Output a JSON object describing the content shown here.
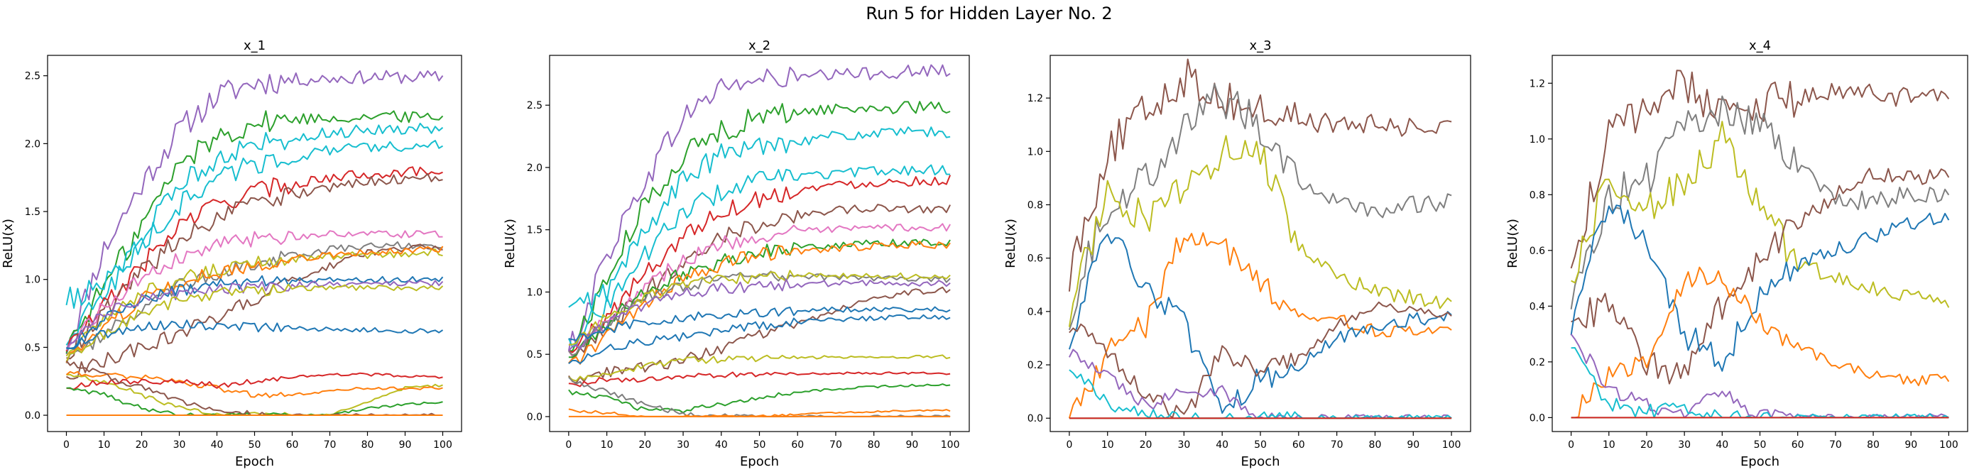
{
  "figure": {
    "suptitle": "Run 5 for Hidden Layer No. 2"
  },
  "chart_data": [
    {
      "type": "line",
      "title": "x_1",
      "xlabel": "Epoch",
      "ylabel": "ReLU(x)",
      "xlim": [
        -5,
        105
      ],
      "ylim": [
        -0.12,
        2.65
      ],
      "xticks": [
        0,
        10,
        20,
        30,
        40,
        50,
        60,
        70,
        80,
        90,
        100
      ],
      "yticks": [
        0.0,
        0.5,
        1.0,
        1.5,
        2.0,
        2.5
      ],
      "ytick_labels": [
        "0.0",
        "0.5",
        "1.0",
        "1.5",
        "2.0",
        "2.5"
      ],
      "grid": false,
      "series": [
        {
          "color": "#9467bd",
          "values": [
            0.5,
            1.22,
            1.7,
            2.1,
            2.35,
            2.45,
            2.47,
            2.48,
            2.49,
            2.49,
            2.49
          ]
        },
        {
          "color": "#2ca02c",
          "values": [
            0.5,
            0.95,
            1.4,
            1.85,
            2.05,
            2.15,
            2.18,
            2.19,
            2.2,
            2.2,
            2.2
          ]
        },
        {
          "color": "#17becf",
          "values": [
            0.85,
            0.95,
            1.3,
            1.7,
            1.9,
            2.0,
            2.05,
            2.08,
            2.1,
            2.11,
            2.12
          ]
        },
        {
          "color": "#17becf",
          "values": [
            0.55,
            0.9,
            1.25,
            1.55,
            1.75,
            1.85,
            1.9,
            1.95,
            1.97,
            1.98,
            1.99
          ]
        },
        {
          "color": "#d62728",
          "values": [
            0.5,
            0.8,
            1.1,
            1.4,
            1.55,
            1.65,
            1.7,
            1.75,
            1.78,
            1.79,
            1.8
          ]
        },
        {
          "color": "#8c564b",
          "values": [
            0.45,
            0.75,
            1.05,
            1.3,
            1.45,
            1.55,
            1.62,
            1.68,
            1.72,
            1.74,
            1.75
          ]
        },
        {
          "color": "#e377c2",
          "values": [
            0.5,
            0.8,
            1.0,
            1.15,
            1.25,
            1.3,
            1.32,
            1.33,
            1.33,
            1.33,
            1.33
          ]
        },
        {
          "color": "#7f7f7f",
          "values": [
            0.4,
            0.6,
            0.8,
            0.95,
            1.05,
            1.12,
            1.18,
            1.22,
            1.25,
            1.25,
            1.25
          ]
        },
        {
          "color": "#8c564b",
          "values": [
            0.3,
            0.4,
            0.5,
            0.6,
            0.72,
            0.85,
            1.0,
            1.1,
            1.2,
            1.23,
            1.24
          ]
        },
        {
          "color": "#bcbd22",
          "values": [
            0.45,
            0.7,
            0.9,
            1.0,
            1.07,
            1.12,
            1.15,
            1.17,
            1.18,
            1.19,
            1.2
          ]
        },
        {
          "color": "#ff7f0e",
          "values": [
            0.4,
            0.65,
            0.85,
            0.98,
            1.05,
            1.1,
            1.15,
            1.18,
            1.2,
            1.21,
            1.22
          ]
        },
        {
          "color": "#1f77b4",
          "values": [
            0.5,
            0.7,
            0.85,
            0.92,
            0.96,
            0.98,
            0.99,
            1.0,
            1.0,
            1.0,
            1.0
          ]
        },
        {
          "color": "#9467bd",
          "values": [
            0.5,
            0.75,
            0.85,
            0.9,
            0.93,
            0.95,
            0.96,
            0.97,
            0.97,
            0.97,
            0.97
          ]
        },
        {
          "color": "#bcbd22",
          "values": [
            0.4,
            0.6,
            0.75,
            0.85,
            0.9,
            0.92,
            0.93,
            0.94,
            0.94,
            0.94,
            0.94
          ]
        },
        {
          "color": "#1f77b4",
          "values": [
            0.5,
            0.6,
            0.65,
            0.67,
            0.66,
            0.65,
            0.64,
            0.63,
            0.63,
            0.62,
            0.62
          ]
        },
        {
          "color": "#bcbd22",
          "values": [
            0.3,
            0.25,
            0.15,
            0.05,
            0.0,
            0.0,
            0.0,
            0.0,
            0.1,
            0.2,
            0.22
          ]
        },
        {
          "color": "#ff7f0e",
          "values": [
            0.3,
            0.3,
            0.28,
            0.25,
            0.2,
            0.15,
            0.15,
            0.18,
            0.2,
            0.2,
            0.2
          ]
        },
        {
          "color": "#d62728",
          "values": [
            0.2,
            0.25,
            0.25,
            0.25,
            0.22,
            0.25,
            0.28,
            0.3,
            0.3,
            0.29,
            0.28
          ]
        },
        {
          "color": "#2ca02c",
          "values": [
            0.2,
            0.15,
            0.05,
            0.0,
            0.0,
            0.0,
            0.0,
            0.0,
            0.05,
            0.08,
            0.1
          ]
        },
        {
          "color": "#8c564b",
          "values": [
            0.4,
            0.3,
            0.2,
            0.1,
            0.05,
            0.0,
            0.0,
            0.0,
            0.0,
            0.0,
            0.0
          ]
        },
        {
          "color": "#ff7f0e",
          "values": [
            0,
            0,
            0,
            0,
            0,
            0,
            0,
            0,
            0,
            0,
            0
          ]
        }
      ]
    },
    {
      "type": "line",
      "title": "x_2",
      "xlabel": "Epoch",
      "ylabel": "ReLU(x)",
      "xlim": [
        -5,
        105
      ],
      "ylim": [
        -0.12,
        2.9
      ],
      "xticks": [
        0,
        10,
        20,
        30,
        40,
        50,
        60,
        70,
        80,
        90,
        100
      ],
      "yticks": [
        0.0,
        0.5,
        1.0,
        1.5,
        2.0,
        2.5
      ],
      "ytick_labels": [
        "0.0",
        "0.5",
        "1.0",
        "1.5",
        "2.0",
        "2.5"
      ],
      "grid": false,
      "series": [
        {
          "color": "#9467bd",
          "values": [
            0.5,
            1.3,
            1.9,
            2.4,
            2.65,
            2.7,
            2.72,
            2.74,
            2.76,
            2.77,
            2.78
          ]
        },
        {
          "color": "#2ca02c",
          "values": [
            0.5,
            1.1,
            1.7,
            2.1,
            2.3,
            2.4,
            2.45,
            2.47,
            2.48,
            2.48,
            2.48
          ]
        },
        {
          "color": "#17becf",
          "values": [
            0.85,
            1.0,
            1.5,
            1.9,
            2.1,
            2.18,
            2.22,
            2.25,
            2.27,
            2.28,
            2.28
          ]
        },
        {
          "color": "#17becf",
          "values": [
            0.6,
            0.9,
            1.3,
            1.65,
            1.8,
            1.9,
            1.93,
            1.95,
            1.97,
            1.98,
            1.98
          ]
        },
        {
          "color": "#d62728",
          "values": [
            0.5,
            0.8,
            1.15,
            1.45,
            1.65,
            1.75,
            1.82,
            1.86,
            1.88,
            1.89,
            1.9
          ]
        },
        {
          "color": "#8c564b",
          "values": [
            0.4,
            0.7,
            1.0,
            1.25,
            1.45,
            1.55,
            1.62,
            1.66,
            1.67,
            1.67,
            1.67
          ]
        },
        {
          "color": "#e377c2",
          "values": [
            0.5,
            0.8,
            1.05,
            1.25,
            1.38,
            1.45,
            1.48,
            1.5,
            1.51,
            1.52,
            1.52
          ]
        },
        {
          "color": "#2ca02c",
          "values": [
            0.45,
            0.75,
            1.0,
            1.15,
            1.25,
            1.32,
            1.36,
            1.38,
            1.39,
            1.4,
            1.4
          ]
        },
        {
          "color": "#ff7f0e",
          "values": [
            0.4,
            0.65,
            0.9,
            1.1,
            1.22,
            1.3,
            1.33,
            1.35,
            1.37,
            1.38,
            1.38
          ]
        },
        {
          "color": "#7f7f7f",
          "values": [
            0.5,
            0.75,
            0.95,
            1.05,
            1.1,
            1.12,
            1.12,
            1.12,
            1.11,
            1.11,
            1.1
          ]
        },
        {
          "color": "#bcbd22",
          "values": [
            0.55,
            0.8,
            0.95,
            1.05,
            1.1,
            1.12,
            1.13,
            1.13,
            1.13,
            1.13,
            1.13
          ]
        },
        {
          "color": "#9467bd",
          "values": [
            0.5,
            0.75,
            0.9,
            0.98,
            1.03,
            1.05,
            1.06,
            1.07,
            1.07,
            1.07,
            1.07
          ]
        },
        {
          "color": "#8c564b",
          "values": [
            0.3,
            0.35,
            0.4,
            0.45,
            0.55,
            0.65,
            0.75,
            0.85,
            0.95,
            1.0,
            1.02
          ]
        },
        {
          "color": "#1f77b4",
          "values": [
            0.6,
            0.7,
            0.75,
            0.8,
            0.82,
            0.84,
            0.85,
            0.86,
            0.86,
            0.86,
            0.86
          ]
        },
        {
          "color": "#1f77b4",
          "values": [
            0.4,
            0.55,
            0.6,
            0.65,
            0.7,
            0.73,
            0.76,
            0.78,
            0.79,
            0.8,
            0.8
          ]
        },
        {
          "color": "#bcbd22",
          "values": [
            0.3,
            0.35,
            0.4,
            0.45,
            0.46,
            0.47,
            0.47,
            0.48,
            0.48,
            0.48,
            0.48
          ]
        },
        {
          "color": "#d62728",
          "values": [
            0.25,
            0.3,
            0.3,
            0.32,
            0.33,
            0.34,
            0.34,
            0.35,
            0.35,
            0.35,
            0.35
          ]
        },
        {
          "color": "#2ca02c",
          "values": [
            0.2,
            0.15,
            0.05,
            0.05,
            0.1,
            0.15,
            0.2,
            0.22,
            0.24,
            0.25,
            0.26
          ]
        },
        {
          "color": "#7f7f7f",
          "values": [
            0.3,
            0.2,
            0.1,
            0.02,
            0.0,
            0.0,
            0.0,
            0.0,
            0.0,
            0.0,
            0.0
          ]
        },
        {
          "color": "#ff7f0e",
          "values": [
            0.05,
            0.03,
            0.0,
            0.0,
            0.0,
            0.0,
            0.02,
            0.03,
            0.04,
            0.05,
            0.05
          ]
        },
        {
          "color": "#ff7f0e",
          "values": [
            0,
            0,
            0,
            0,
            0,
            0,
            0,
            0,
            0,
            0,
            0
          ]
        }
      ]
    },
    {
      "type": "line",
      "title": "x_3",
      "xlabel": "Epoch",
      "ylabel": "ReLU(x)",
      "xlim": [
        -5,
        105
      ],
      "ylim": [
        -0.05,
        1.36
      ],
      "xticks": [
        0,
        10,
        20,
        30,
        40,
        50,
        60,
        70,
        80,
        90,
        100
      ],
      "yticks": [
        0.0,
        0.2,
        0.4,
        0.6,
        0.8,
        1.0,
        1.2
      ],
      "ytick_labels": [
        "0.0",
        "0.2",
        "0.4",
        "0.6",
        "0.8",
        "1.0",
        "1.2"
      ],
      "grid": false,
      "series": [
        {
          "color": "#8c564b",
          "values": [
            0.55,
            1.0,
            1.15,
            1.28,
            1.2,
            1.15,
            1.12,
            1.1,
            1.1,
            1.09,
            1.08
          ]
        },
        {
          "color": "#7f7f7f",
          "values": [
            0.4,
            0.8,
            0.9,
            1.1,
            1.2,
            1.1,
            0.9,
            0.8,
            0.78,
            0.8,
            0.81
          ]
        },
        {
          "color": "#bcbd22",
          "values": [
            0.4,
            0.85,
            0.75,
            0.85,
            1.0,
            1.0,
            0.65,
            0.52,
            0.48,
            0.45,
            0.42
          ]
        },
        {
          "color": "#ff7f0e",
          "values": [
            0.0,
            0.25,
            0.35,
            0.7,
            0.65,
            0.5,
            0.4,
            0.37,
            0.33,
            0.32,
            0.32
          ]
        },
        {
          "color": "#1f77b4",
          "values": [
            0.3,
            0.7,
            0.5,
            0.35,
            0.0,
            0.15,
            0.2,
            0.3,
            0.35,
            0.37,
            0.38
          ]
        },
        {
          "color": "#8c564b",
          "values": [
            0.35,
            0.25,
            0.1,
            0.0,
            0.25,
            0.18,
            0.22,
            0.35,
            0.42,
            0.4,
            0.38
          ]
        },
        {
          "color": "#9467bd",
          "values": [
            0.25,
            0.15,
            0.05,
            0.1,
            0.1,
            0.0,
            0.0,
            0.0,
            0.0,
            0.0,
            0.0
          ]
        },
        {
          "color": "#17becf",
          "values": [
            0.2,
            0.05,
            0.02,
            0.0,
            0.0,
            0.0,
            0.0,
            0.0,
            0.0,
            0.0,
            0.0
          ]
        },
        {
          "color": "#2ca02c",
          "values": [
            0,
            0,
            0,
            0,
            0,
            0,
            0,
            0,
            0,
            0,
            0
          ]
        },
        {
          "color": "#d62728",
          "values": [
            0,
            0,
            0,
            0,
            0,
            0,
            0,
            0,
            0,
            0,
            0
          ]
        }
      ]
    },
    {
      "type": "line",
      "title": "x_4",
      "xlabel": "Epoch",
      "ylabel": "ReLU(x)",
      "xlim": [
        -5,
        105
      ],
      "ylim": [
        -0.05,
        1.3
      ],
      "xticks": [
        0,
        10,
        20,
        30,
        40,
        50,
        60,
        70,
        80,
        90,
        100
      ],
      "yticks": [
        0.0,
        0.2,
        0.4,
        0.6,
        0.8,
        1.0,
        1.2
      ],
      "ytick_labels": [
        "0.0",
        "0.2",
        "0.4",
        "0.6",
        "0.8",
        "1.0",
        "1.2"
      ],
      "grid": false,
      "series": [
        {
          "color": "#8c564b",
          "values": [
            0.55,
            1.0,
            1.12,
            1.2,
            1.1,
            1.12,
            1.15,
            1.17,
            1.16,
            1.15,
            1.14
          ]
        },
        {
          "color": "#7f7f7f",
          "values": [
            0.4,
            0.8,
            0.85,
            1.05,
            1.1,
            1.05,
            0.9,
            0.78,
            0.78,
            0.8,
            0.8
          ]
        },
        {
          "color": "#bcbd22",
          "values": [
            0.5,
            0.85,
            0.75,
            0.85,
            1.0,
            0.75,
            0.55,
            0.5,
            0.46,
            0.43,
            0.4
          ]
        },
        {
          "color": "#8c564b",
          "values": [
            0.35,
            0.4,
            0.2,
            0.15,
            0.4,
            0.55,
            0.7,
            0.8,
            0.88,
            0.86,
            0.87
          ]
        },
        {
          "color": "#1f77b4",
          "values": [
            0.3,
            0.8,
            0.6,
            0.3,
            0.2,
            0.45,
            0.55,
            0.6,
            0.65,
            0.7,
            0.72
          ]
        },
        {
          "color": "#ff7f0e",
          "values": [
            0.0,
            0.15,
            0.2,
            0.5,
            0.5,
            0.35,
            0.25,
            0.2,
            0.15,
            0.13,
            0.14
          ]
        },
        {
          "color": "#9467bd",
          "values": [
            0.3,
            0.1,
            0.05,
            0.0,
            0.1,
            0.0,
            0.0,
            0.0,
            0.0,
            0.0,
            0.0
          ]
        },
        {
          "color": "#17becf",
          "values": [
            0.25,
            0.05,
            0.02,
            0.03,
            0.0,
            0.0,
            0.0,
            0.0,
            0.0,
            0.0,
            0.0
          ]
        },
        {
          "color": "#2ca02c",
          "values": [
            0,
            0,
            0,
            0,
            0,
            0,
            0,
            0,
            0,
            0,
            0
          ]
        },
        {
          "color": "#d62728",
          "values": [
            0,
            0,
            0,
            0,
            0,
            0,
            0,
            0,
            0,
            0,
            0
          ]
        }
      ]
    }
  ]
}
